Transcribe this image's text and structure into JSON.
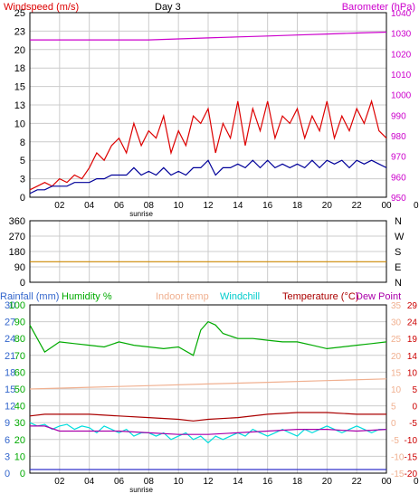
{
  "chart_data": [
    {
      "id": "wind-baro",
      "type": "line",
      "title": "Day 3",
      "left_axis_label": "Windspeed (m/s)",
      "right_axis_label": "Barometer (hPa)",
      "ylim_left": [
        0,
        25
      ],
      "ylim_right": [
        950,
        1045
      ],
      "left_ticks": [
        0,
        3,
        5,
        8,
        10,
        13,
        15,
        18,
        20,
        23,
        25
      ],
      "right_ticks": [
        950,
        960,
        970,
        980,
        990,
        1000,
        1010,
        1020,
        1030,
        1040
      ],
      "x_ticks": [
        "02",
        "04",
        "06",
        "08",
        "10",
        "12",
        "14",
        "16",
        "18",
        "20",
        "22",
        "00",
        "0"
      ],
      "x_sublabel": "sunrise",
      "grid": true,
      "series": [
        {
          "name": "Windspeed (m/s)",
          "color": "#dd0000",
          "axis": "left",
          "x": [
            0,
            0.5,
            1,
            1.5,
            2,
            2.5,
            3,
            3.5,
            4,
            4.5,
            5,
            5.5,
            6,
            6.5,
            7,
            7.5,
            8,
            8.5,
            9,
            9.5,
            10,
            10.5,
            11,
            11.5,
            12,
            12.5,
            13,
            13.5,
            14,
            14.5,
            15,
            15.5,
            16,
            16.5,
            17,
            17.5,
            18,
            18.5,
            19,
            19.5,
            20,
            20.5,
            21,
            21.5,
            22,
            22.5,
            23,
            23.5,
            24
          ],
          "values": [
            1,
            1.5,
            2,
            1.5,
            2.5,
            2,
            3,
            2.5,
            4,
            6,
            5,
            7,
            8,
            6,
            10,
            7,
            9,
            8,
            11,
            6,
            9,
            7,
            11,
            10,
            12,
            6,
            10,
            8,
            13,
            7,
            12,
            9,
            13,
            8,
            11,
            10,
            12,
            8,
            11,
            9,
            13,
            8,
            11,
            9,
            12,
            10,
            13,
            9,
            8
          ]
        },
        {
          "name": "Windspeed gust",
          "color": "#000099",
          "axis": "left",
          "x": [
            0,
            0.5,
            1,
            1.5,
            2,
            2.5,
            3,
            3.5,
            4,
            4.5,
            5,
            5.5,
            6,
            6.5,
            7,
            7.5,
            8,
            8.5,
            9,
            9.5,
            10,
            10.5,
            11,
            11.5,
            12,
            12.5,
            13,
            13.5,
            14,
            14.5,
            15,
            15.5,
            16,
            16.5,
            17,
            17.5,
            18,
            18.5,
            19,
            19.5,
            20,
            20.5,
            21,
            21.5,
            22,
            22.5,
            23,
            23.5,
            24
          ],
          "values": [
            0.5,
            1,
            1,
            1.5,
            1.5,
            1.5,
            2,
            2,
            2,
            2.5,
            2.5,
            3,
            3,
            3,
            4,
            3,
            3.5,
            3,
            4,
            3,
            3.5,
            3,
            4,
            4,
            5,
            3,
            4,
            4,
            4.5,
            4,
            5,
            4,
            5,
            4,
            4.5,
            4,
            4.5,
            4,
            5,
            4,
            5,
            4.5,
            5,
            4,
            5,
            4.5,
            5,
            4.5,
            4
          ]
        },
        {
          "name": "Barometer (hPa)",
          "color": "#cc00cc",
          "axis": "right",
          "x": [
            0,
            2,
            4,
            6,
            8,
            10,
            12,
            14,
            16,
            18,
            20,
            22,
            24
          ],
          "values": [
            1031,
            1031,
            1031,
            1031,
            1031,
            1031.5,
            1032,
            1032.5,
            1033,
            1033.5,
            1034,
            1034.5,
            1035
          ]
        }
      ]
    },
    {
      "id": "wind-direction",
      "type": "line",
      "left_ticks": [
        0,
        90,
        180,
        270,
        360
      ],
      "right_ticks": [
        "N",
        "E",
        "S",
        "W",
        "N"
      ],
      "ylim": [
        0,
        360
      ],
      "grid": true,
      "series": [
        {
          "name": "Wind direction",
          "color": "#cc8800",
          "x": [
            0,
            24
          ],
          "values": [
            120,
            120
          ]
        }
      ]
    },
    {
      "id": "temp-humidity",
      "type": "line",
      "legend": [
        "Rainfall (mm)",
        "Humidity %",
        "Indoor temp",
        "Windchill",
        "Temperature (°C)",
        "Dew Point"
      ],
      "rain_ticks": [
        0,
        3,
        6,
        9,
        12,
        15,
        18,
        21,
        24,
        27,
        30
      ],
      "humidity_ticks": [
        0,
        10,
        20,
        30,
        40,
        50,
        60,
        70,
        80,
        90,
        100
      ],
      "right1_ticks": [
        -15,
        -10,
        -5,
        0,
        5,
        10,
        15,
        20,
        25,
        30,
        35
      ],
      "right2_ticks": [
        -20,
        -15,
        -10,
        -5,
        0,
        5,
        10,
        14,
        19,
        24,
        29
      ],
      "ylim_temp": [
        -15,
        35
      ],
      "x_ticks": [
        "02",
        "04",
        "06",
        "08",
        "10",
        "12",
        "14",
        "16",
        "18",
        "20",
        "22",
        "00",
        "0"
      ],
      "x_sublabel": "sunrise",
      "grid": true,
      "series": [
        {
          "name": "Humidity %",
          "color": "#00aa00",
          "axis": "humidity",
          "x": [
            0,
            0.5,
            1,
            1.5,
            2,
            3,
            4,
            5,
            6,
            7,
            8,
            9,
            10,
            11,
            11.5,
            12,
            12.5,
            13,
            14,
            15,
            16,
            17,
            18,
            19,
            20,
            21,
            22,
            23,
            24
          ],
          "values": [
            88,
            80,
            72,
            75,
            78,
            77,
            76,
            75,
            78,
            76,
            75,
            74,
            75,
            70,
            85,
            90,
            88,
            83,
            80,
            80,
            79,
            78,
            78,
            76,
            74,
            75,
            76,
            77,
            78
          ]
        },
        {
          "name": "Indoor temp",
          "color": "#f0b090",
          "axis": "temp",
          "x": [
            0,
            4,
            8,
            12,
            16,
            20,
            24
          ],
          "values": [
            10,
            10.5,
            11,
            11.5,
            12,
            12.5,
            13
          ]
        },
        {
          "name": "Temperature (°C)",
          "color": "#aa0000",
          "axis": "temp",
          "x": [
            0,
            1,
            2,
            4,
            6,
            8,
            10,
            11,
            12,
            14,
            16,
            18,
            20,
            22,
            24
          ],
          "values": [
            2,
            2.5,
            2.5,
            2.5,
            2,
            1.5,
            1,
            0.5,
            1,
            1.5,
            2.5,
            3,
            3,
            2.5,
            2.5
          ]
        },
        {
          "name": "Windchill",
          "color": "#00dddd",
          "axis": "temp",
          "x": [
            0,
            0.5,
            1,
            1.5,
            2,
            2.5,
            3,
            3.5,
            4,
            4.5,
            5,
            5.5,
            6,
            6.5,
            7,
            7.5,
            8,
            8.5,
            9,
            9.5,
            10,
            10.5,
            11,
            11.5,
            12,
            12.5,
            13,
            13.5,
            14,
            14.5,
            15,
            15.5,
            16,
            16.5,
            17,
            17.5,
            18,
            18.5,
            19,
            19.5,
            20,
            20.5,
            21,
            21.5,
            22,
            22.5,
            23,
            23.5,
            24
          ],
          "values": [
            0,
            -1,
            -0.5,
            -2,
            -1,
            -0.5,
            -2,
            -1,
            -1.5,
            -3,
            -1,
            -2,
            -3,
            -2,
            -4,
            -3,
            -3,
            -4,
            -3,
            -5,
            -4,
            -3,
            -5,
            -4,
            -6,
            -4,
            -5,
            -4,
            -3,
            -4,
            -2,
            -3,
            -4,
            -3,
            -2,
            -3,
            -4,
            -2,
            -3,
            -2,
            -1,
            -2,
            -3,
            -2,
            -1,
            -2,
            -3,
            -2,
            -2
          ]
        },
        {
          "name": "Dew Point",
          "color": "#aa00aa",
          "axis": "temp",
          "x": [
            0,
            1,
            2,
            4,
            6,
            8,
            10,
            12,
            14,
            16,
            18,
            20,
            22,
            24
          ],
          "values": [
            -1,
            -1,
            -2.5,
            -2.5,
            -2.5,
            -3,
            -3.5,
            -3.5,
            -3,
            -2.5,
            -2,
            -2,
            -2.5,
            -2
          ]
        },
        {
          "name": "Rainfall (mm)",
          "color": "#3333cc",
          "axis": "rain",
          "x": [
            0,
            24
          ],
          "values": [
            0,
            0
          ]
        }
      ]
    }
  ]
}
